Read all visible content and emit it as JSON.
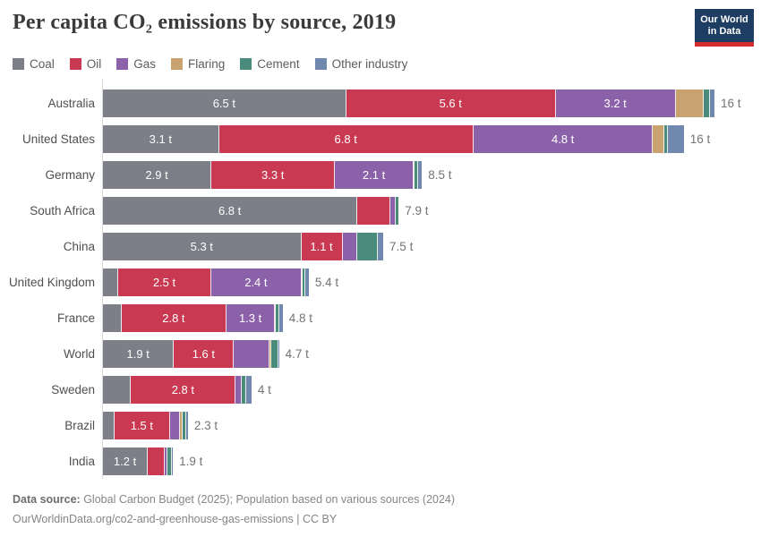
{
  "title": "Per capita CO₂ emissions by source, 2019",
  "logo": {
    "line1": "Our World",
    "line2": "in Data"
  },
  "colors": {
    "coal": "#7c7f87",
    "oil": "#c93a52",
    "gas": "#8b62a9",
    "flaring": "#c9a36f",
    "cement": "#4b8b7c",
    "other_industry": "#7188ae",
    "logo_navy": "#1d3d63",
    "logo_red": "#d42b2f"
  },
  "chart_data": {
    "type": "bar",
    "stacked": true,
    "orientation": "horizontal",
    "unit": "tonnes CO₂ per person",
    "grid": false,
    "x_axis": {
      "min": 0,
      "max": 16.4,
      "visible": false
    },
    "series_names": [
      "Coal",
      "Oil",
      "Gas",
      "Flaring",
      "Cement",
      "Other industry"
    ],
    "series_colors": [
      "#7c7f87",
      "#c93a52",
      "#8b62a9",
      "#c9a36f",
      "#4b8b7c",
      "#7188ae"
    ],
    "rows": [
      {
        "country": "Australia",
        "values": [
          6.5,
          5.6,
          3.2,
          0.75,
          0.17,
          0.12
        ],
        "segment_labels": [
          "6.5 t",
          "5.6 t",
          "3.2 t",
          "",
          "",
          ""
        ],
        "total_label": "16 t"
      },
      {
        "country": "United States",
        "values": [
          3.1,
          6.8,
          4.8,
          0.29,
          0.1,
          0.43
        ],
        "segment_labels": [
          "3.1 t",
          "6.8 t",
          "4.8 t",
          "",
          "",
          ""
        ],
        "total_label": "16 t"
      },
      {
        "country": "Germany",
        "values": [
          2.9,
          3.3,
          2.1,
          0.01,
          0.1,
          0.1
        ],
        "segment_labels": [
          "2.9 t",
          "3.3 t",
          "2.1 t",
          "",
          "",
          ""
        ],
        "total_label": "8.5 t"
      },
      {
        "country": "South Africa",
        "values": [
          6.8,
          0.88,
          0.14,
          0,
          0.08,
          0
        ],
        "segment_labels": [
          "6.8 t",
          "",
          "",
          "",
          "",
          ""
        ],
        "total_label": "7.9 t"
      },
      {
        "country": "China",
        "values": [
          5.3,
          1.1,
          0.4,
          0,
          0.55,
          0.14
        ],
        "segment_labels": [
          "5.3 t",
          "1.1 t",
          "",
          "",
          "",
          ""
        ],
        "total_label": "7.5 t"
      },
      {
        "country": "United Kingdom",
        "values": [
          0.4,
          2.5,
          2.4,
          0.03,
          0.08,
          0.09
        ],
        "segment_labels": [
          "",
          "2.5 t",
          "2.4 t",
          "",
          "",
          ""
        ],
        "total_label": "5.4 t"
      },
      {
        "country": "France",
        "values": [
          0.5,
          2.8,
          1.3,
          0.02,
          0.1,
          0.08
        ],
        "segment_labels": [
          "",
          "2.8 t",
          "1.3 t",
          "",
          "",
          ""
        ],
        "total_label": "4.8 t"
      },
      {
        "country": "World",
        "values": [
          1.9,
          1.6,
          0.95,
          0.05,
          0.18,
          0.02
        ],
        "segment_labels": [
          "1.9 t",
          "1.6 t",
          "",
          "",
          "",
          ""
        ],
        "total_label": "4.7 t"
      },
      {
        "country": "Sweden",
        "values": [
          0.75,
          2.8,
          0.15,
          0,
          0.12,
          0.15
        ],
        "segment_labels": [
          "",
          "2.8 t",
          "",
          "",
          "",
          ""
        ],
        "total_label": "4 t"
      },
      {
        "country": "Brazil",
        "values": [
          0.3,
          1.5,
          0.25,
          0.07,
          0.11,
          0.04
        ],
        "segment_labels": [
          "",
          "1.5 t",
          "",
          "",
          "",
          ""
        ],
        "total_label": "2.3 t"
      },
      {
        "country": "India",
        "values": [
          1.2,
          0.45,
          0.07,
          0,
          0.12,
          0.03
        ],
        "segment_labels": [
          "1.2 t",
          "",
          "",
          "",
          "",
          ""
        ],
        "total_label": "1.9 t"
      }
    ]
  },
  "footer": {
    "source_label": "Data source:",
    "source_text": " Global Carbon Budget (2025); Population based on various sources (2024)",
    "link_line": "OurWorldinData.org/co2-and-greenhouse-gas-emissions | CC BY"
  }
}
